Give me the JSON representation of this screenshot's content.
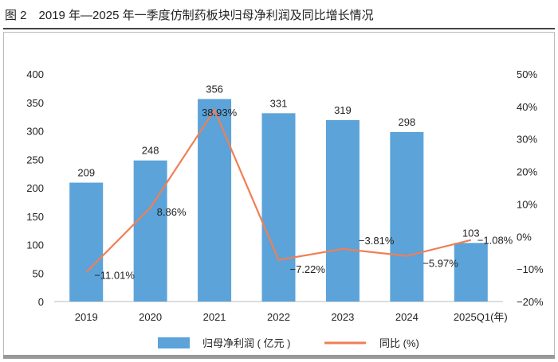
{
  "title": "图 2　2019 年—2025 年一季度仿制药板块归母净利润及同比增长情况",
  "chart_data": {
    "type": "bar+line",
    "categories": [
      "2019",
      "2020",
      "2021",
      "2022",
      "2023",
      "2024",
      "2025Q1"
    ],
    "x_unit": "(年)",
    "series": [
      {
        "name": "归母净利润(亿元)",
        "type": "bar",
        "axis": "left",
        "color": "#5ba3d9",
        "values": [
          209,
          248,
          356,
          331,
          319,
          298,
          103
        ],
        "labels": [
          "209",
          "248",
          "356",
          "331",
          "319",
          "298",
          "103"
        ]
      },
      {
        "name": "同比(%)",
        "type": "line",
        "axis": "right",
        "color": "#f07f55",
        "values": [
          -11.01,
          8.86,
          38.93,
          -7.22,
          -3.81,
          -5.97,
          -1.08
        ],
        "labels": [
          "−11.01%",
          "8.86%",
          "38.93%",
          "−7.22%",
          "−3.81%",
          "−5.97%",
          "−1.08%"
        ]
      }
    ],
    "left_axis": {
      "ylim": [
        0,
        400
      ],
      "ticks": [
        "0",
        "50",
        "100",
        "150",
        "200",
        "250",
        "300",
        "350",
        "400"
      ]
    },
    "right_axis": {
      "ylim": [
        -20,
        50
      ],
      "ticks": [
        "−20%",
        "−10%",
        "0%",
        "10%",
        "20%",
        "30%",
        "40%",
        "50%"
      ]
    },
    "grid": false,
    "legend": {
      "position": "bottom",
      "items": [
        "归母净利润 ( 亿元 )",
        "同比 (%)"
      ]
    }
  }
}
